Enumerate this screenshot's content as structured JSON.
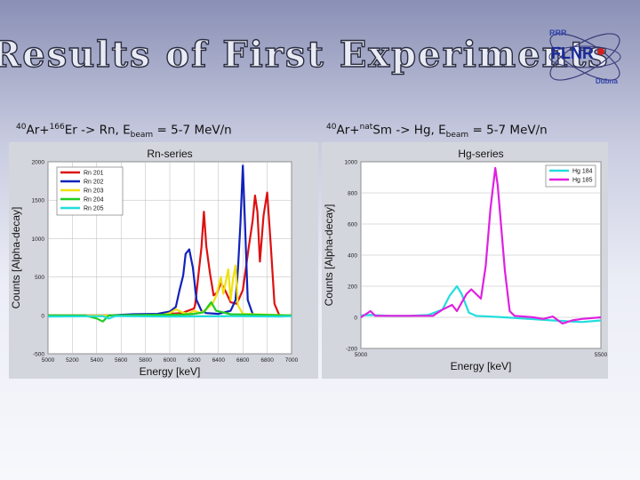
{
  "slide": {
    "title": "Results of First Experiments",
    "logo_text": "FLNR",
    "logo_small_top": "RRR",
    "logo_small_bottom": "Dubna",
    "subtitle_left": {
      "sup1": "40",
      "t1": "Ar+",
      "sup2": "166",
      "t2": "Er -> Rn, E",
      "sub": "beam",
      "t3": " = 5-7 MeV/n"
    },
    "subtitle_right": {
      "sup1": "40",
      "t1": "Ar+",
      "sup2": "nat",
      "t2": "Sm -> Hg, E",
      "sub": "beam",
      "t3": " = 5-7 MeV/n"
    }
  },
  "colors": {
    "rn201": "#dd1111",
    "rn202": "#1122bb",
    "rn203": "#f0e010",
    "rn204": "#22cc22",
    "rn205": "#22dddd",
    "hg184": "#22dddd",
    "hg185": "#e020e0"
  },
  "chart_data": [
    {
      "type": "line",
      "title": "Rn-series",
      "xlabel": "Energy [keV]",
      "ylabel": "Counts [Alpha-decay]",
      "xlim": [
        5000,
        7000
      ],
      "ylim": [
        -500,
        2000
      ],
      "xticks": [
        5000,
        5200,
        5400,
        5600,
        5800,
        6000,
        6200,
        6400,
        6600,
        6800,
        7000
      ],
      "yticks": [
        -500,
        0,
        500,
        1000,
        1500,
        2000
      ],
      "grid": true,
      "legend": "top-left",
      "series": [
        {
          "name": "Rn 201",
          "color_key": "rn201",
          "x": [
            5000,
            5500,
            5900,
            6100,
            6200,
            6210,
            6230,
            6260,
            6280,
            6300,
            6330,
            6360,
            6390,
            6420,
            6450,
            6500,
            6550,
            6600,
            6650,
            6680,
            6700,
            6720,
            6740,
            6770,
            6800,
            6830,
            6860,
            6900,
            7000
          ],
          "y": [
            0,
            0,
            10,
            30,
            90,
            150,
            450,
            880,
            1350,
            900,
            550,
            260,
            300,
            420,
            340,
            170,
            150,
            330,
            900,
            1230,
            1560,
            1350,
            700,
            1300,
            1600,
            900,
            150,
            0,
            0
          ]
        },
        {
          "name": "Rn 202",
          "color_key": "rn202",
          "x": [
            5000,
            5300,
            5500,
            5700,
            5900,
            6000,
            6050,
            6080,
            6110,
            6130,
            6160,
            6190,
            6220,
            6260,
            6300,
            6400,
            6500,
            6540,
            6560,
            6580,
            6600,
            6615,
            6640,
            6680,
            6720,
            7000
          ],
          "y": [
            0,
            0,
            0,
            15,
            20,
            50,
            110,
            330,
            520,
            800,
            860,
            620,
            200,
            60,
            30,
            20,
            60,
            200,
            600,
            1200,
            1950,
            1300,
            200,
            20,
            0,
            0
          ]
        },
        {
          "name": "Rn 203",
          "color_key": "rn203",
          "x": [
            5000,
            5900,
            5950,
            6000,
            6050,
            6100,
            6150,
            6200,
            6250,
            6300,
            6350,
            6380,
            6420,
            6440,
            6460,
            6480,
            6500,
            6520,
            6540,
            6560,
            6600,
            7000
          ],
          "y": [
            0,
            0,
            10,
            30,
            80,
            40,
            20,
            60,
            30,
            80,
            150,
            250,
            500,
            280,
            440,
            600,
            200,
            480,
            650,
            130,
            20,
            0
          ]
        },
        {
          "name": "Rn 204",
          "color_key": "rn204",
          "x": [
            5000,
            5300,
            5400,
            5450,
            5500,
            6100,
            6200,
            6280,
            6320,
            6340,
            6380,
            6500,
            7000
          ],
          "y": [
            0,
            0,
            -40,
            -80,
            0,
            10,
            20,
            40,
            130,
            170,
            60,
            15,
            0
          ]
        },
        {
          "name": "Rn 205",
          "color_key": "rn205",
          "x": [
            5000,
            5450,
            5500,
            5550,
            5600,
            6000,
            6500,
            6900,
            7000
          ],
          "y": [
            -15,
            -10,
            -40,
            -10,
            -10,
            -15,
            -10,
            -15,
            -10
          ]
        }
      ]
    },
    {
      "type": "line",
      "title": "Hg-series",
      "xlabel": "Energy [keV]",
      "ylabel": "Counts [Alpha-decay]",
      "xlim": [
        5000,
        5500
      ],
      "ylim": [
        -200,
        1000
      ],
      "xticks": [
        5000,
        5500
      ],
      "yticks": [
        -200,
        0,
        200,
        400,
        600,
        800,
        1000
      ],
      "grid": true,
      "legend": "top-right",
      "series": [
        {
          "name": "Hg 184",
          "color_key": "hg184",
          "x": [
            4970,
            5020,
            5060,
            5100,
            5140,
            5170,
            5185,
            5200,
            5210,
            5225,
            5240,
            5300,
            5400,
            5460,
            5500
          ],
          "y": [
            10,
            15,
            10,
            10,
            15,
            50,
            140,
            200,
            150,
            30,
            10,
            0,
            -20,
            -30,
            -20
          ]
        },
        {
          "name": "Hg 185",
          "color_key": "hg185",
          "x": [
            4970,
            5000,
            5010,
            5020,
            5030,
            5060,
            5100,
            5150,
            5170,
            5190,
            5200,
            5220,
            5230,
            5250,
            5260,
            5270,
            5280,
            5285,
            5300,
            5310,
            5320,
            5340,
            5360,
            5380,
            5400,
            5420,
            5440,
            5460,
            5500
          ],
          "y": [
            0,
            0,
            20,
            40,
            10,
            10,
            10,
            10,
            50,
            80,
            40,
            150,
            180,
            120,
            330,
            700,
            960,
            850,
            300,
            40,
            10,
            5,
            0,
            -10,
            5,
            -40,
            -20,
            -10,
            0
          ]
        }
      ]
    }
  ]
}
